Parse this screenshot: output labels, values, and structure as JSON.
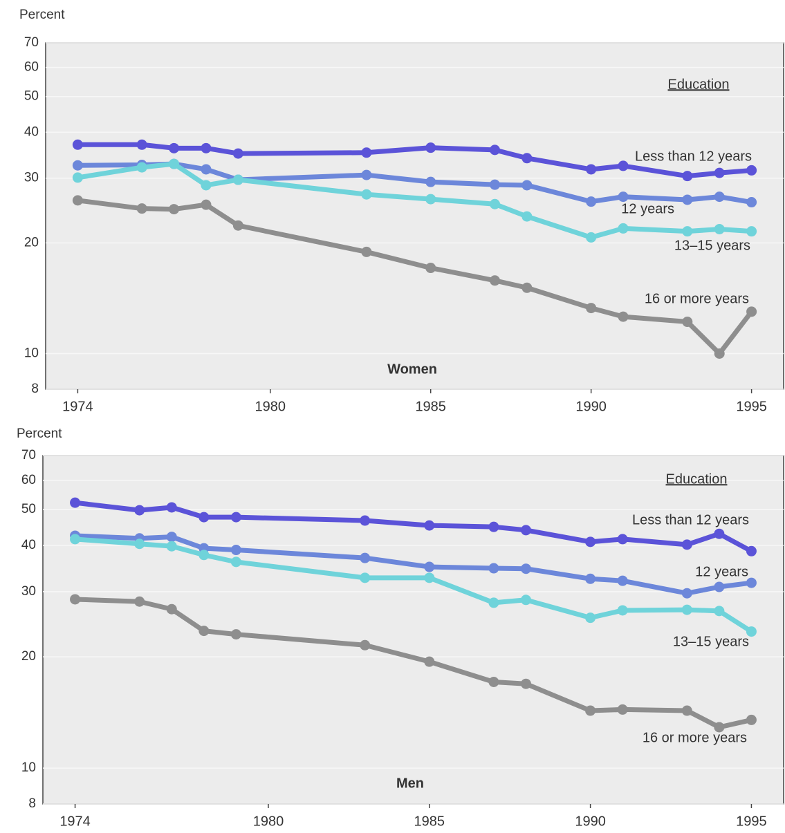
{
  "chart_data": [
    {
      "type": "line",
      "label": "Women",
      "ylabel": "Percent",
      "legend_title": "Education",
      "y_scale": "log",
      "grid": true,
      "x": [
        1974,
        1976,
        1977,
        1978,
        1979,
        1983,
        1985,
        1987,
        1988,
        1990,
        1991,
        1993,
        1994,
        1995
      ],
      "xlim": [
        1973,
        1996
      ],
      "xticks": [
        1974,
        1980,
        1985,
        1990,
        1995
      ],
      "ylim": [
        8,
        70
      ],
      "yticks": [
        8,
        10,
        20,
        30,
        40,
        50,
        60,
        70
      ],
      "series": [
        {
          "name": "Less than 12 years",
          "color": "#5b53d8",
          "values": [
            37,
            37,
            36.2,
            36.2,
            35,
            35.2,
            36.3,
            35.8,
            34,
            31.7,
            32.4,
            30.4,
            31,
            31.5
          ]
        },
        {
          "name": "12 years",
          "color": "#6c87da",
          "values": [
            32.5,
            32.6,
            32.8,
            31.7,
            29.7,
            30.6,
            29.3,
            28.8,
            28.7,
            25.9,
            26.7,
            26.2,
            26.7,
            25.8
          ]
        },
        {
          "name": "13–15 years",
          "color": "#6fd3da",
          "values": [
            30.1,
            32.1,
            32.8,
            28.7,
            29.7,
            27.1,
            26.3,
            25.5,
            23.6,
            20.7,
            21.9,
            21.5,
            21.8,
            21.5
          ]
        },
        {
          "name": "16 or more years",
          "color": "#8e8e8e",
          "values": [
            26.1,
            24.8,
            24.7,
            25.4,
            22.3,
            18.9,
            17.1,
            15.8,
            15.1,
            13.3,
            12.6,
            12.2,
            10,
            13
          ]
        }
      ]
    },
    {
      "type": "line",
      "label": "Men",
      "ylabel": "Percent",
      "legend_title": "Education",
      "y_scale": "log",
      "grid": true,
      "x": [
        1974,
        1976,
        1977,
        1978,
        1979,
        1983,
        1985,
        1987,
        1988,
        1990,
        1991,
        1993,
        1994,
        1995
      ],
      "xlim": [
        1973,
        1996
      ],
      "xticks": [
        1974,
        1980,
        1985,
        1990,
        1995
      ],
      "ylim": [
        8,
        70
      ],
      "yticks": [
        8,
        10,
        20,
        30,
        40,
        50,
        60,
        70
      ],
      "series": [
        {
          "name": "Less than 12 years",
          "color": "#5b53d8",
          "values": [
            52.2,
            49.8,
            50.7,
            47.7,
            47.7,
            46.7,
            45.3,
            44.9,
            44,
            40.9,
            41.6,
            40.2,
            43,
            38.6
          ]
        },
        {
          "name": "12 years",
          "color": "#6c87da",
          "values": [
            42.5,
            41.8,
            42.2,
            39.3,
            38.9,
            37,
            35,
            34.7,
            34.6,
            32.5,
            32.1,
            29.7,
            30.9,
            31.7
          ]
        },
        {
          "name": "13–15 years",
          "color": "#6fd3da",
          "values": [
            41.6,
            40.4,
            39.8,
            37.7,
            36.1,
            32.7,
            32.7,
            28,
            28.5,
            25.5,
            26.7,
            26.8,
            26.6,
            23.4
          ]
        },
        {
          "name": "16 or more years",
          "color": "#8e8e8e",
          "values": [
            28.6,
            28.2,
            26.9,
            23.5,
            23,
            21.5,
            19.4,
            17.1,
            16.9,
            14.3,
            14.4,
            14.3,
            12.9,
            13.5
          ]
        }
      ]
    }
  ]
}
